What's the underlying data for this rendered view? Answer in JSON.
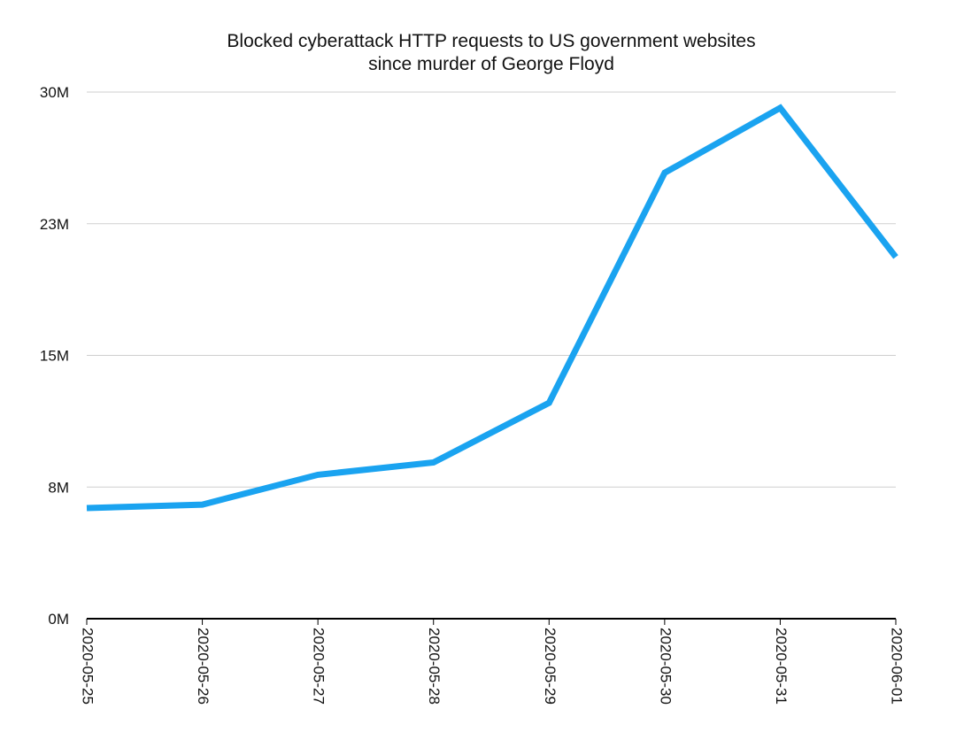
{
  "chart_data": {
    "type": "line",
    "title": "Blocked cyberattack HTTP requests to US government websites since murder of George Floyd",
    "title_lines": [
      "Blocked cyberattack HTTP requests to US government websites",
      "since murder of George Floyd"
    ],
    "xlabel": "",
    "ylabel": "",
    "categories": [
      "2020-05-25",
      "2020-05-26",
      "2020-05-27",
      "2020-05-28",
      "2020-05-29",
      "2020-05-30",
      "2020-05-31",
      "2020-06-01"
    ],
    "series": [
      {
        "values": [
          6300000,
          6500000,
          8200000,
          8900000,
          12300000,
          25400000,
          29100000,
          20600000
        ],
        "color": "#1aa3f0"
      }
    ],
    "y_ticks": [
      0,
      7500000,
      15000000,
      22500000,
      30000000
    ],
    "y_tick_labels": [
      "0M",
      "8M",
      "15M",
      "23M",
      "30M"
    ],
    "ylim": [
      0,
      30000000
    ],
    "grid": true,
    "legend": "none"
  }
}
